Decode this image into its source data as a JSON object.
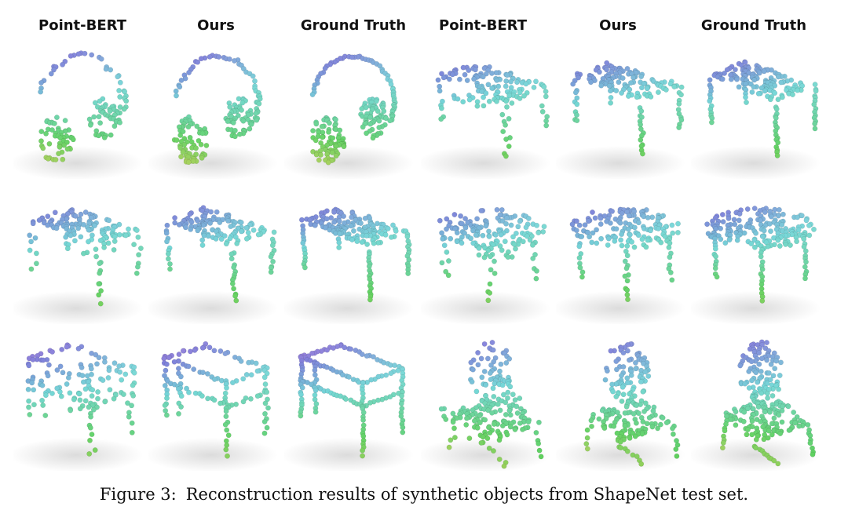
{
  "column_headers": [
    "Point-BERT",
    "Ours",
    "Ground Truth",
    "Point-BERT",
    "Ours",
    "Ground Truth"
  ],
  "rows": [
    {
      "cells": [
        {
          "method": "Point-BERT",
          "shape": "headphones"
        },
        {
          "method": "Ours",
          "shape": "headphones"
        },
        {
          "method": "Ground Truth",
          "shape": "headphones"
        },
        {
          "method": "Point-BERT",
          "shape": "table"
        },
        {
          "method": "Ours",
          "shape": "table"
        },
        {
          "method": "Ground Truth",
          "shape": "table"
        }
      ]
    },
    {
      "cells": [
        {
          "method": "Point-BERT",
          "shape": "table"
        },
        {
          "method": "Ours",
          "shape": "table"
        },
        {
          "method": "Ground Truth",
          "shape": "table"
        },
        {
          "method": "Point-BERT",
          "shape": "round-table"
        },
        {
          "method": "Ours",
          "shape": "round-table"
        },
        {
          "method": "Ground Truth",
          "shape": "round-table"
        }
      ]
    },
    {
      "cells": [
        {
          "method": "Point-BERT",
          "shape": "shelf-bench"
        },
        {
          "method": "Ours",
          "shape": "shelf-bench"
        },
        {
          "method": "Ground Truth",
          "shape": "shelf-bench"
        },
        {
          "method": "Point-BERT",
          "shape": "chair"
        },
        {
          "method": "Ours",
          "shape": "chair"
        },
        {
          "method": "Ground Truth",
          "shape": "chair"
        }
      ]
    }
  ],
  "caption": {
    "label": "Figure 3:",
    "text": "Reconstruction results of synthetic objects from ShapeNet test set."
  }
}
